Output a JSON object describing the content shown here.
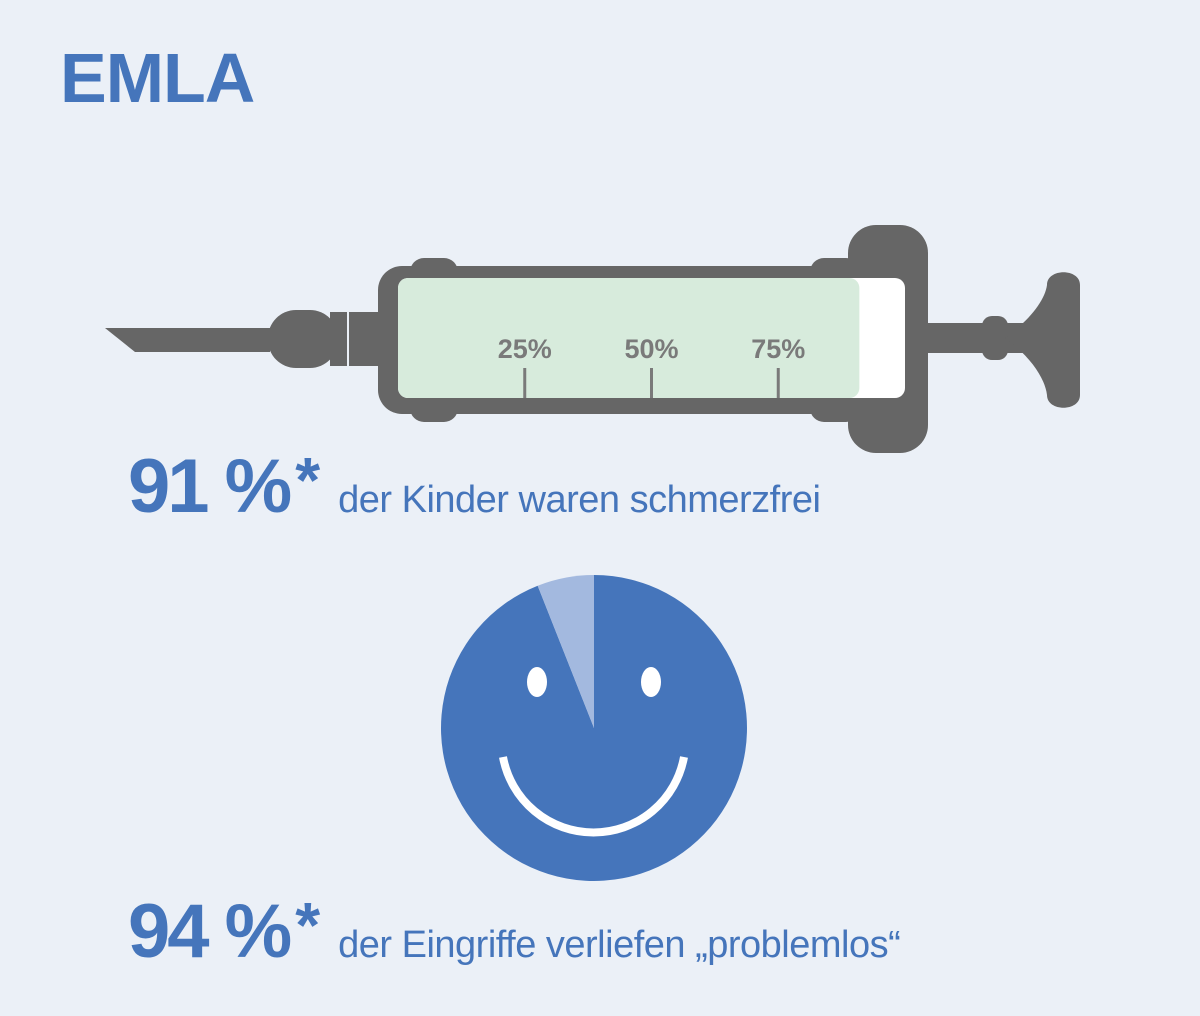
{
  "title": "EMLA",
  "colors": {
    "brand_blue": "#4575bb",
    "light_blue": "#a3b9df",
    "syringe_gray": "#666666",
    "liquid_green": "#d7ebdc",
    "tick_gray": "#7a7a7a",
    "background": "#ebf0f7"
  },
  "chart_data": [
    {
      "type": "bar",
      "description_source": "syringe fill gauge",
      "value": 91,
      "unit": "%",
      "scale_ticks": [
        "25%",
        "50%",
        "75%"
      ],
      "tick_values": [
        25,
        50,
        75
      ],
      "ylim": [
        0,
        100
      ],
      "label_value": "91 %",
      "asterisk": "*",
      "label_text": "der Kinder waren schmerzfrei"
    },
    {
      "type": "pie",
      "description_source": "smiley pie",
      "slices": [
        {
          "name": "",
          "value": 94,
          "color": "#4575bb"
        },
        {
          "name": "",
          "value": 6,
          "color": "#a3b9df"
        }
      ],
      "label_value": "94 %",
      "asterisk": "*",
      "label_text": "der Eingriffe verliefen „problemlos“"
    }
  ]
}
